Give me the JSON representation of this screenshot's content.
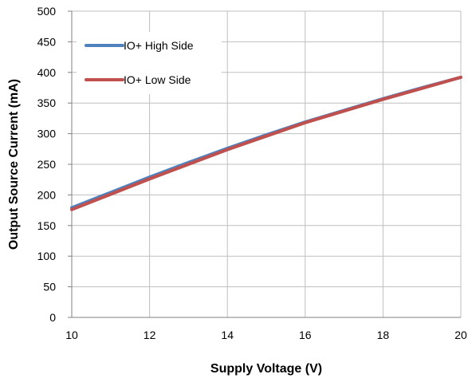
{
  "chart_data": {
    "type": "line",
    "xlabel": "Supply Voltage (V)",
    "ylabel": "Output Source Current (mA)",
    "xlim": [
      10,
      20
    ],
    "ylim": [
      0,
      500
    ],
    "xticks": [
      10,
      12,
      14,
      16,
      18,
      20
    ],
    "yticks": [
      0,
      50,
      100,
      150,
      200,
      250,
      300,
      350,
      400,
      450,
      500
    ],
    "xtick_labels": [
      "10",
      "12",
      "14",
      "16",
      "18",
      "20"
    ],
    "ytick_labels": [
      "0",
      "50",
      "100",
      "150",
      "200",
      "250",
      "300",
      "350",
      "400",
      "450",
      "500"
    ],
    "grid": true,
    "legend_position": "top-left",
    "series": [
      {
        "name": "IO+ High Side",
        "color": "#4f81bd",
        "x": [
          10,
          11,
          12,
          13,
          14,
          15,
          16,
          17,
          18,
          19,
          20
        ],
        "y": [
          179,
          204,
          229,
          253,
          276,
          298,
          319,
          338,
          357,
          375,
          392
        ]
      },
      {
        "name": "IO+ Low Side",
        "color": "#c0504d",
        "x": [
          10,
          11,
          12,
          13,
          14,
          15,
          16,
          17,
          18,
          19,
          20
        ],
        "y": [
          176,
          201,
          226,
          250,
          274,
          296,
          318,
          337,
          356,
          374,
          392
        ]
      }
    ]
  }
}
